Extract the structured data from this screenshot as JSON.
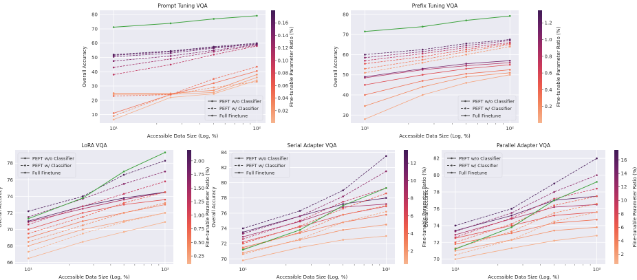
{
  "chart_data": [
    {
      "type": "line",
      "title": "Prompt Tuning VQA",
      "xlabel": "Accessible Data Size (Log, %)",
      "ylabel": "Overall Accuracy",
      "xscale": "log",
      "xlim": [
        8,
        115
      ],
      "ylim": [
        4,
        83
      ],
      "x": [
        10,
        25,
        50,
        100
      ],
      "xtick_labels": [
        "10¹",
        "10²"
      ],
      "yticks": [
        10,
        20,
        30,
        40,
        50,
        60,
        70,
        80
      ],
      "colorbar": {
        "label": "Fine-tunable Parameter Ratio (%)",
        "min": 0.0,
        "max": 0.18,
        "ticks": [
          0.02,
          0.04,
          0.06,
          0.08,
          0.1,
          0.12,
          0.14,
          0.16
        ],
        "tick_labels": [
          "0.02",
          "0.04",
          "0.06",
          "0.08",
          "0.10",
          "0.12",
          "0.14",
          "0.16"
        ]
      },
      "legend": {
        "position": "lower-right",
        "entries": [
          "PEFT w/o Classifier",
          "PEFT w/ Classifier",
          "Full Finetune"
        ]
      },
      "series": [
        {
          "name": "Full Finetune",
          "kind": "full",
          "values": [
            71.2,
            73.9,
            77.0,
            79.2
          ]
        },
        {
          "name": "PEFT w/o Classifier",
          "kind": "nocls",
          "ratio": 0.004,
          "values": [
            6.5,
            22.0,
            24.5,
            34.0
          ]
        },
        {
          "name": "PEFT w/o Classifier",
          "kind": "nocls",
          "ratio": 0.012,
          "values": [
            24.2,
            24.2,
            25.5,
            36.0
          ]
        },
        {
          "name": "PEFT w/o Classifier",
          "kind": "nocls",
          "ratio": 0.025,
          "values": [
            25.0,
            24.8,
            27.0,
            38.0
          ]
        },
        {
          "name": "PEFT w/o Classifier",
          "kind": "nocls",
          "ratio": 0.045,
          "values": [
            11.0,
            24.0,
            32.0,
            40.5
          ]
        },
        {
          "name": "PEFT w/ Classifier",
          "kind": "cls",
          "ratio": 0.02,
          "values": [
            9.0,
            24.0,
            29.0,
            33.0
          ]
        },
        {
          "name": "PEFT w/ Classifier",
          "kind": "cls",
          "ratio": 0.05,
          "values": [
            23.0,
            24.0,
            35.0,
            43.5
          ]
        },
        {
          "name": "PEFT w/ Classifier",
          "kind": "cls",
          "ratio": 0.1,
          "values": [
            38.0,
            45.0,
            52.0,
            58.0
          ]
        },
        {
          "name": "PEFT w/ Classifier",
          "kind": "cls",
          "ratio": 0.12,
          "values": [
            43.0,
            49.0,
            54.0,
            58.5
          ]
        },
        {
          "name": "PEFT w/ Classifier",
          "kind": "cls",
          "ratio": 0.14,
          "values": [
            47.5,
            51.0,
            55.0,
            59.0
          ]
        },
        {
          "name": "PEFT w/ Classifier",
          "kind": "cls",
          "ratio": 0.15,
          "values": [
            50.5,
            53.0,
            56.5,
            59.5
          ]
        },
        {
          "name": "PEFT w/ Classifier",
          "kind": "cls",
          "ratio": 0.16,
          "values": [
            51.5,
            54.0,
            57.0,
            59.5
          ]
        },
        {
          "name": "PEFT w/ Classifier",
          "kind": "cls",
          "ratio": 0.17,
          "values": [
            52.0,
            54.5,
            57.5,
            60.0
          ]
        }
      ]
    },
    {
      "type": "line",
      "title": "Prefix Tuning VQA",
      "xlabel": "Accessible Data Size (Log, %)",
      "ylabel": "Overall Accuracy",
      "xscale": "log",
      "xlim": [
        8,
        115
      ],
      "ylim": [
        26,
        82
      ],
      "x": [
        10,
        25,
        50,
        100
      ],
      "xtick_labels": [
        "10¹",
        "10²"
      ],
      "yticks": [
        30,
        40,
        50,
        60,
        70,
        80
      ],
      "colorbar": {
        "label": "Fine-tunable Parameter Ratio (%)",
        "min": 0.0,
        "max": 1.35,
        "ticks": [
          0.2,
          0.4,
          0.6,
          0.8,
          1.0,
          1.2
        ],
        "tick_labels": [
          "0.2",
          "0.4",
          "0.6",
          "0.8",
          "1.0",
          "1.2"
        ]
      },
      "legend": {
        "position": "lower-right",
        "entries": [
          "PEFT w/o Classifier",
          "PEFT w/ Classifier",
          "Full Finetune"
        ]
      },
      "series": [
        {
          "name": "Full Finetune",
          "kind": "full",
          "values": [
            71.5,
            73.9,
            77.0,
            79.2
          ]
        },
        {
          "name": "PEFT w/o Classifier",
          "kind": "nocls",
          "ratio": 0.08,
          "values": [
            28.0,
            40.0,
            46.0,
            50.0
          ]
        },
        {
          "name": "PEFT w/o Classifier",
          "kind": "nocls",
          "ratio": 0.2,
          "values": [
            34.5,
            44.0,
            49.0,
            51.0
          ]
        },
        {
          "name": "PEFT w/o Classifier",
          "kind": "nocls",
          "ratio": 0.35,
          "values": [
            40.0,
            47.0,
            50.5,
            52.5
          ]
        },
        {
          "name": "PEFT w/o Classifier",
          "kind": "nocls",
          "ratio": 0.55,
          "values": [
            45.0,
            50.0,
            53.0,
            55.0
          ]
        },
        {
          "name": "PEFT w/o Classifier",
          "kind": "nocls",
          "ratio": 0.8,
          "values": [
            48.5,
            52.5,
            54.5,
            56.0
          ]
        },
        {
          "name": "PEFT w/o Classifier",
          "kind": "nocls",
          "ratio": 1.1,
          "values": [
            49.0,
            53.0,
            55.5,
            57.0
          ]
        },
        {
          "name": "PEFT w/ Classifier",
          "kind": "cls",
          "ratio": 0.15,
          "values": [
            51.0,
            56.0,
            60.0,
            64.0
          ]
        },
        {
          "name": "PEFT w/ Classifier",
          "kind": "cls",
          "ratio": 0.3,
          "values": [
            53.0,
            57.5,
            61.5,
            65.0
          ]
        },
        {
          "name": "PEFT w/ Classifier",
          "kind": "cls",
          "ratio": 0.5,
          "values": [
            55.5,
            59.0,
            62.5,
            65.5
          ]
        },
        {
          "name": "PEFT w/ Classifier",
          "kind": "cls",
          "ratio": 0.75,
          "values": [
            57.0,
            60.5,
            63.5,
            66.0
          ]
        },
        {
          "name": "PEFT w/ Classifier",
          "kind": "cls",
          "ratio": 1.0,
          "values": [
            58.5,
            61.5,
            64.5,
            67.0
          ]
        },
        {
          "name": "PEFT w/ Classifier",
          "kind": "cls",
          "ratio": 1.25,
          "values": [
            60.0,
            62.5,
            65.5,
            67.5
          ]
        }
      ]
    },
    {
      "type": "line",
      "title": "LoRA VQA",
      "xlabel": "Accessible Data Size (Log, %)",
      "ylabel": "Overall Accuracy",
      "xscale": "log",
      "xlim": [
        8,
        115
      ],
      "ylim": [
        65.8,
        79.6
      ],
      "x": [
        10,
        25,
        50,
        100
      ],
      "xtick_labels": [
        "10¹",
        "10²"
      ],
      "yticks": [
        66,
        68,
        70,
        72,
        74,
        76,
        78
      ],
      "colorbar": {
        "label": "Fine-tunable Parameter Ratio (%)",
        "min": 0.1,
        "max": 2.2,
        "ticks": [
          0.25,
          0.5,
          0.75,
          1.0,
          1.25,
          1.5,
          1.75,
          2.0
        ],
        "tick_labels": [
          "0.25",
          "0.50",
          "0.75",
          "1.00",
          "1.25",
          "1.50",
          "1.75",
          "2.00"
        ]
      },
      "legend": {
        "position": "upper-left",
        "entries": [
          "PEFT w/o Classifier",
          "PEFT w/ Classifier",
          "Full Finetune"
        ]
      },
      "series": [
        {
          "name": "Full Finetune",
          "kind": "full",
          "values": [
            71.3,
            73.8,
            77.0,
            79.3
          ]
        },
        {
          "name": "PEFT w/o Classifier",
          "kind": "nocls",
          "ratio": 0.12,
          "values": [
            66.5,
            68.5,
            69.7,
            70.9
          ]
        },
        {
          "name": "PEFT w/o Classifier",
          "kind": "nocls",
          "ratio": 0.3,
          "values": [
            68.0,
            70.0,
            71.0,
            72.0
          ]
        },
        {
          "name": "PEFT w/o Classifier",
          "kind": "nocls",
          "ratio": 0.55,
          "values": [
            69.0,
            71.0,
            72.0,
            73.0
          ]
        },
        {
          "name": "PEFT w/o Classifier",
          "kind": "nocls",
          "ratio": 0.9,
          "values": [
            70.0,
            72.0,
            73.0,
            73.6
          ]
        },
        {
          "name": "PEFT w/o Classifier",
          "kind": "nocls",
          "ratio": 1.4,
          "values": [
            70.9,
            72.5,
            73.6,
            74.5
          ]
        },
        {
          "name": "PEFT w/o Classifier",
          "kind": "nocls",
          "ratio": 2.05,
          "values": [
            71.0,
            72.8,
            73.8,
            74.5
          ]
        },
        {
          "name": "PEFT w/ Classifier",
          "kind": "cls",
          "ratio": 0.15,
          "values": [
            67.3,
            69.5,
            70.9,
            72.0
          ]
        },
        {
          "name": "PEFT w/ Classifier",
          "kind": "cls",
          "ratio": 0.4,
          "values": [
            68.5,
            70.5,
            72.0,
            73.2
          ]
        },
        {
          "name": "PEFT w/ Classifier",
          "kind": "cls",
          "ratio": 0.75,
          "values": [
            69.5,
            71.5,
            73.2,
            74.5
          ]
        },
        {
          "name": "PEFT w/ Classifier",
          "kind": "cls",
          "ratio": 1.2,
          "values": [
            70.6,
            72.8,
            74.3,
            75.8
          ]
        },
        {
          "name": "PEFT w/ Classifier",
          "kind": "cls",
          "ratio": 1.7,
          "values": [
            71.5,
            73.7,
            75.5,
            77.0
          ]
        },
        {
          "name": "PEFT w/ Classifier",
          "kind": "cls",
          "ratio": 2.1,
          "values": [
            72.2,
            74.0,
            76.6,
            78.3
          ]
        }
      ]
    },
    {
      "type": "line",
      "title": "Serial Adapter VQA",
      "xlabel": "Accessible Data Size (Log, %)",
      "ylabel": "Overall Accuracy",
      "xscale": "log",
      "xlim": [
        8,
        115
      ],
      "ylim": [
        69.3,
        84.3
      ],
      "x": [
        10,
        25,
        50,
        100
      ],
      "xtick_labels": [
        "10¹",
        "10²"
      ],
      "yticks": [
        70,
        72,
        74,
        76,
        78,
        80,
        82,
        84
      ],
      "colorbar": {
        "label": "Fine-tunable Parameter Ratio (%)",
        "min": 0.5,
        "max": 13.5,
        "ticks": [
          2,
          4,
          6,
          8,
          10,
          12
        ],
        "tick_labels": [
          "2",
          "4",
          "6",
          "8",
          "10",
          "12"
        ]
      },
      "legend": {
        "position": "upper-left",
        "entries": [
          "PEFT w/o Classifier",
          "PEFT w/ Classifier",
          "Full Finetune"
        ]
      },
      "series": [
        {
          "name": "Full Finetune",
          "kind": "full",
          "values": [
            71.2,
            73.8,
            77.0,
            79.3
          ]
        },
        {
          "name": "PEFT w/o Classifier",
          "kind": "nocls",
          "ratio": 1.0,
          "values": [
            69.8,
            71.5,
            72.5,
            73.0
          ]
        },
        {
          "name": "PEFT w/o Classifier",
          "kind": "nocls",
          "ratio": 2.0,
          "values": [
            70.8,
            72.5,
            73.8,
            74.5
          ]
        },
        {
          "name": "PEFT w/o Classifier",
          "kind": "nocls",
          "ratio": 3.5,
          "values": [
            71.5,
            73.4,
            74.8,
            75.8
          ]
        },
        {
          "name": "PEFT w/o Classifier",
          "kind": "nocls",
          "ratio": 6.0,
          "values": [
            72.2,
            74.2,
            75.8,
            76.9
          ]
        },
        {
          "name": "PEFT w/o Classifier",
          "kind": "nocls",
          "ratio": 9.0,
          "values": [
            72.9,
            74.9,
            76.8,
            77.2
          ]
        },
        {
          "name": "PEFT w/o Classifier",
          "kind": "nocls",
          "ratio": 12.5,
          "values": [
            73.5,
            75.6,
            77.2,
            78.0
          ]
        },
        {
          "name": "PEFT w/ Classifier",
          "kind": "cls",
          "ratio": 1.5,
          "values": [
            70.6,
            72.6,
            74.8,
            76.2
          ]
        },
        {
          "name": "PEFT w/ Classifier",
          "kind": "cls",
          "ratio": 3.0,
          "values": [
            71.3,
            73.5,
            75.8,
            77.0
          ]
        },
        {
          "name": "PEFT w/ Classifier",
          "kind": "cls",
          "ratio": 5.0,
          "values": [
            72.0,
            74.3,
            76.6,
            78.6
          ]
        },
        {
          "name": "PEFT w/ Classifier",
          "kind": "cls",
          "ratio": 7.5,
          "values": [
            72.6,
            75.0,
            77.5,
            79.3
          ]
        },
        {
          "name": "PEFT w/ Classifier",
          "kind": "cls",
          "ratio": 10.0,
          "values": [
            73.3,
            75.6,
            78.2,
            81.5
          ]
        },
        {
          "name": "PEFT w/ Classifier",
          "kind": "cls",
          "ratio": 13.0,
          "values": [
            74.0,
            76.3,
            79.0,
            83.5
          ]
        }
      ]
    },
    {
      "type": "line",
      "title": "Parallel Adapter VQA",
      "xlabel": "Accessible Data Size (Log, %)",
      "ylabel": "Overall Accuracy",
      "xscale": "log",
      "xlim": [
        8,
        115
      ],
      "ylim": [
        69.4,
        83.0
      ],
      "x": [
        10,
        25,
        50,
        100
      ],
      "xtick_labels": [
        "10¹",
        "10²"
      ],
      "yticks": [
        70,
        72,
        74,
        76,
        78,
        80,
        82
      ],
      "colorbar": {
        "label": "Fine-tunable Parameter Ratio (%)",
        "min": 0.5,
        "max": 17.5,
        "ticks": [
          2,
          4,
          6,
          8,
          10,
          12,
          14,
          16
        ],
        "tick_labels": [
          "2",
          "4",
          "6",
          "8",
          "10",
          "12",
          "14",
          "16"
        ]
      },
      "legend": {
        "position": "upper-left",
        "entries": [
          "PEFT w/o Classifier",
          "PEFT w/ Classifier",
          "Full Finetune"
        ]
      },
      "series": [
        {
          "name": "Full Finetune",
          "kind": "full",
          "values": [
            71.2,
            73.8,
            77.0,
            79.2
          ]
        },
        {
          "name": "PEFT w/o Classifier",
          "kind": "nocls",
          "ratio": 1.0,
          "values": [
            70.0,
            71.3,
            72.2,
            72.8
          ]
        },
        {
          "name": "PEFT w/o Classifier",
          "kind": "nocls",
          "ratio": 2.5,
          "values": [
            71.0,
            72.3,
            73.4,
            73.8
          ]
        },
        {
          "name": "PEFT w/o Classifier",
          "kind": "nocls",
          "ratio": 4.5,
          "values": [
            71.8,
            73.1,
            74.3,
            74.7
          ]
        },
        {
          "name": "PEFT w/o Classifier",
          "kind": "nocls",
          "ratio": 7.0,
          "values": [
            72.5,
            74.0,
            75.2,
            75.6
          ]
        },
        {
          "name": "PEFT w/o Classifier",
          "kind": "nocls",
          "ratio": 11.0,
          "values": [
            72.9,
            74.8,
            76.2,
            76.5
          ]
        },
        {
          "name": "PEFT w/o Classifier",
          "kind": "nocls",
          "ratio": 16.0,
          "values": [
            73.4,
            75.2,
            77.0,
            77.5
          ]
        },
        {
          "name": "PEFT w/ Classifier",
          "kind": "cls",
          "ratio": 1.5,
          "values": [
            70.5,
            72.3,
            74.5,
            75.6
          ]
        },
        {
          "name": "PEFT w/ Classifier",
          "kind": "cls",
          "ratio": 3.5,
          "values": [
            71.3,
            73.3,
            75.5,
            76.6
          ]
        },
        {
          "name": "PEFT w/ Classifier",
          "kind": "cls",
          "ratio": 6.0,
          "values": [
            72.0,
            74.2,
            76.4,
            77.5
          ]
        },
        {
          "name": "PEFT w/ Classifier",
          "kind": "cls",
          "ratio": 9.0,
          "values": [
            72.6,
            74.9,
            77.2,
            78.4
          ]
        },
        {
          "name": "PEFT w/ Classifier",
          "kind": "cls",
          "ratio": 13.0,
          "values": [
            73.3,
            75.5,
            78.0,
            80.0
          ]
        },
        {
          "name": "PEFT w/ Classifier",
          "kind": "cls",
          "ratio": 17.0,
          "values": [
            74.0,
            76.0,
            79.0,
            82.0
          ]
        }
      ]
    }
  ]
}
